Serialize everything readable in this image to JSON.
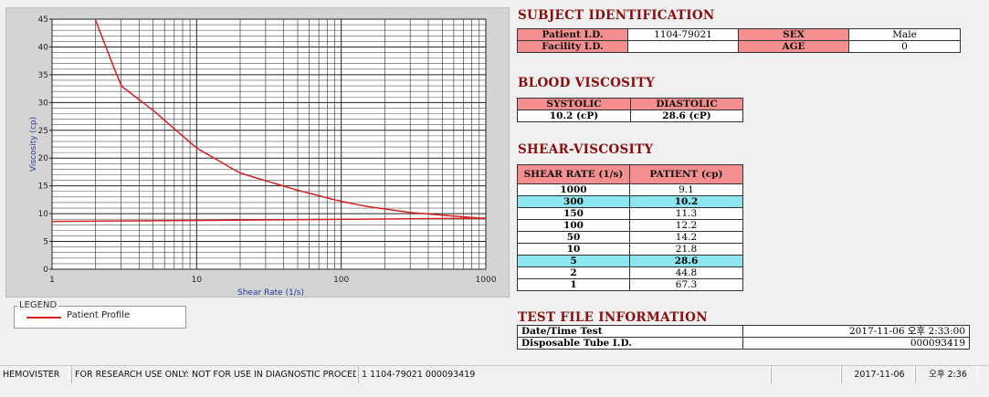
{
  "chart": {
    "y_axis_label": "Viscosity (cp)",
    "x_axis_label": "Shear Rate (1/s)",
    "y_ticks": [
      "0",
      "5",
      "10",
      "15",
      "20",
      "25",
      "30",
      "35",
      "40",
      "45"
    ],
    "x_ticks": [
      "1",
      "10",
      "100",
      "1000"
    ],
    "curve_color": "#d42020"
  },
  "chart_data": {
    "type": "line",
    "xscale": "log",
    "xlim": [
      1,
      1000
    ],
    "ylim": [
      0,
      45
    ],
    "ylabel": "Viscosity (cp)",
    "xlabel": "Shear Rate (1/s)",
    "grid": true,
    "series": [
      {
        "name": "Patient Profile",
        "x": [
          2,
          3,
          5,
          10,
          20,
          50,
          100,
          150,
          300,
          1000
        ],
        "values": [
          44.8,
          33.0,
          28.6,
          21.8,
          17.3,
          14.2,
          12.2,
          11.3,
          10.2,
          9.1
        ]
      },
      {
        "name": "Patient Profile",
        "x": [
          1,
          15,
          120,
          1000
        ],
        "values": [
          8.6,
          8.8,
          9.0,
          9.2
        ]
      }
    ]
  },
  "legend": {
    "title": "LEGEND",
    "entry": "Patient Profile"
  },
  "subject": {
    "title": "SUBJECT IDENTIFICATION",
    "patient_id_label": "Patient I.D.",
    "patient_id_value": "1104-79021",
    "sex_label": "SEX",
    "sex_value": "Male",
    "facility_id_label": "Facility I.D.",
    "facility_id_value": "",
    "age_label": "AGE",
    "age_value": "0"
  },
  "blood": {
    "title": "BLOOD VISCOSITY",
    "systolic_label": "SYSTOLIC",
    "diastolic_label": "DIASTOLIC",
    "systolic_value": "10.2 (cP)",
    "diastolic_value": "28.6 (cP)"
  },
  "shear": {
    "title": "SHEAR-VISCOSITY",
    "col_rate": "SHEAR RATE (1/s)",
    "col_patient": "PATIENT (cp)",
    "rows": [
      {
        "rate": "1000",
        "value": "9.1",
        "highlight": false
      },
      {
        "rate": "300",
        "value": "10.2",
        "highlight": true
      },
      {
        "rate": "150",
        "value": "11.3",
        "highlight": false
      },
      {
        "rate": "100",
        "value": "12.2",
        "highlight": false
      },
      {
        "rate": "50",
        "value": "14.2",
        "highlight": false
      },
      {
        "rate": "10",
        "value": "21.8",
        "highlight": false
      },
      {
        "rate": "5",
        "value": "28.6",
        "highlight": true
      },
      {
        "rate": "2",
        "value": "44.8",
        "highlight": false
      },
      {
        "rate": "1",
        "value": "67.3",
        "highlight": false
      }
    ]
  },
  "testfile": {
    "title": "TEST FILE INFORMATION",
    "datetime_label": "Date/Time Test",
    "datetime_value": "2017-11-06  오후 2:33:00",
    "tube_label": "Disposable Tube I.D.",
    "tube_value": "000093419"
  },
  "statusbar": {
    "app": "HEMOVISTER",
    "disclaimer": "FOR RESEARCH USE ONLY: NOT FOR USE IN DIAGNOSTIC PROCEDURES",
    "record": "1  1104-79021  000093419",
    "date": "2017-11-06",
    "time": "오후 2:36"
  }
}
